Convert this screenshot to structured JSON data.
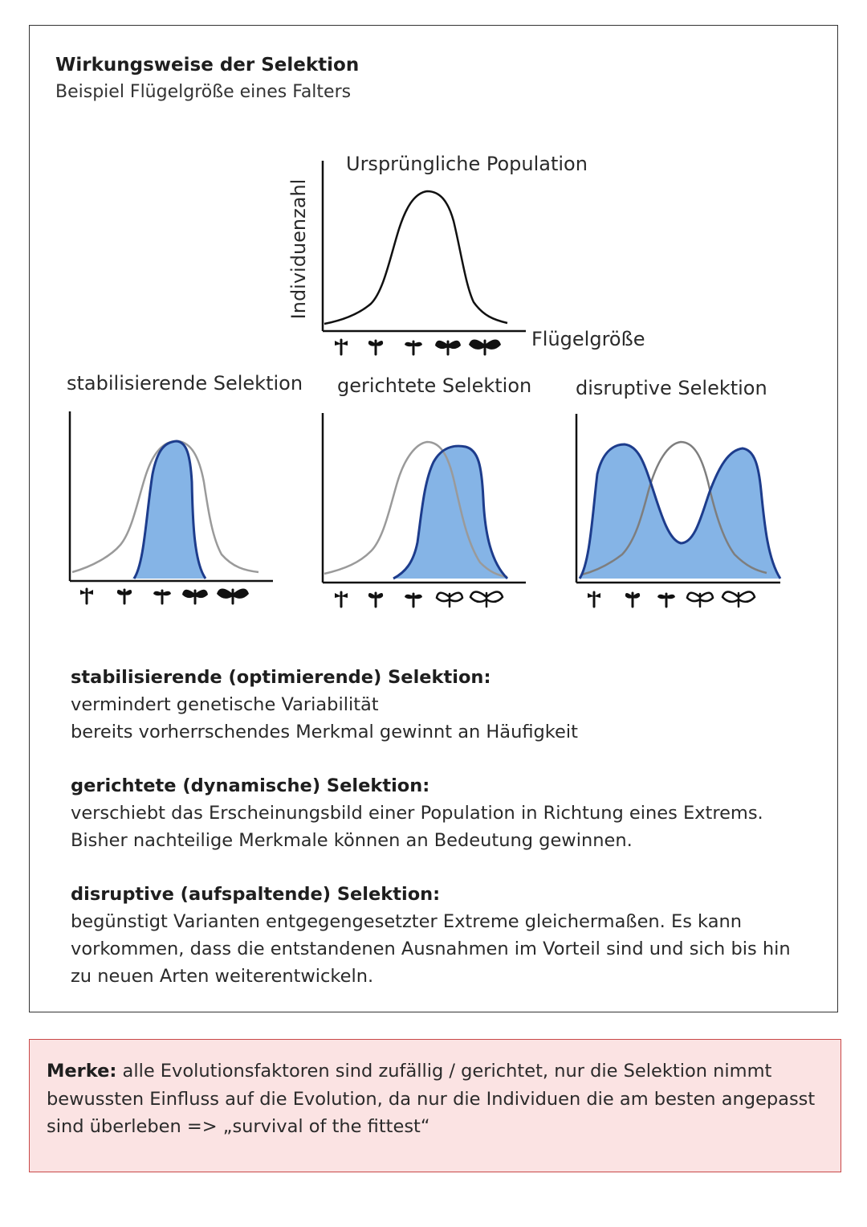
{
  "header": {
    "title": "Wirkungsweise der Selektion",
    "subtitle": "Beispiel Flügelgröße eines Falters"
  },
  "main_chart": {
    "title": "Ursprüngliche Population",
    "ylabel": "Individuenzahl",
    "xlabel": "Flügelgröße"
  },
  "panels": {
    "stabilizing": "stabilisierende Selektion",
    "directional": "gerichtete Selektion",
    "disruptive": "disruptive Selektion"
  },
  "colors": {
    "fill": "#85b4e6",
    "outline": "#1d3c8c",
    "original_curve": "#9a9a9a",
    "merke_bg": "#fbe3e3",
    "merke_border": "#c94848"
  },
  "sections": [
    {
      "heading": "stabilisierende (optimierende) Selektion:",
      "lines": [
        "vermindert genetische Variabilität",
        "bereits vorherrschendes Merkmal gewinnt an Häufigkeit"
      ]
    },
    {
      "heading": "gerichtete (dynamische) Selektion:",
      "lines": [
        "verschiebt das Erscheinungsbild einer Population in Richtung eines Extrems.",
        "Bisher nachteilige Merkmale können an Bedeutung gewinnen."
      ]
    },
    {
      "heading": "disruptive (aufspaltende) Selektion:",
      "lines": [
        "begünstigt Varianten entgegengesetzter Extreme gleichermaßen. Es kann",
        "vorkommen, dass die entstandenen Ausnahmen im Vorteil sind und sich bis hin",
        "zu neuen Arten weiterentwickeln."
      ]
    }
  ],
  "merke": {
    "label": "Merke:",
    "text": " alle Evolutionsfaktoren sind zufällig / gerichtet, nur die Selektion nimmt bewussten Einfluss auf die Evolution, da nur die Individuen die am besten angepasst sind überleben => „survival of the fittest“"
  }
}
